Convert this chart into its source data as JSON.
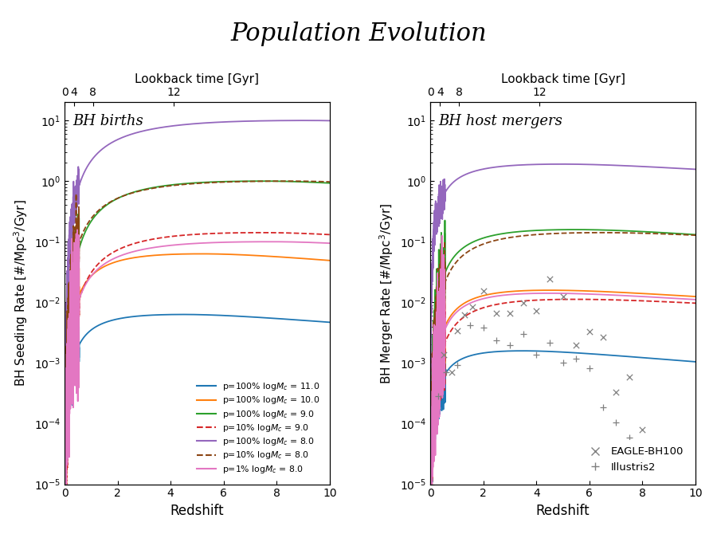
{
  "title": "Population Evolution",
  "panel1_label": "BH births",
  "panel2_label": "BH host mergers",
  "ylabel1": "BH Seeding Rate [#/Mpc$^3$/Gyr]",
  "ylabel2": "BH Merger Rate [#/Mpc$^3$/Gyr]",
  "xlabel": "Redshift",
  "top_xlabel": "Lookback time [Gyr]",
  "target_tlb": [
    0,
    4,
    8,
    12
  ],
  "xlim": [
    0,
    10
  ],
  "ylim_lo": 1e-05,
  "ylim_hi": 20,
  "colors": {
    "blue": "#1f77b4",
    "orange": "#ff7f0e",
    "green": "#2ca02c",
    "red": "#d62728",
    "purple": "#9467bd",
    "brown": "#8B4513",
    "pink": "#e377c2"
  },
  "obs_color": "gray"
}
